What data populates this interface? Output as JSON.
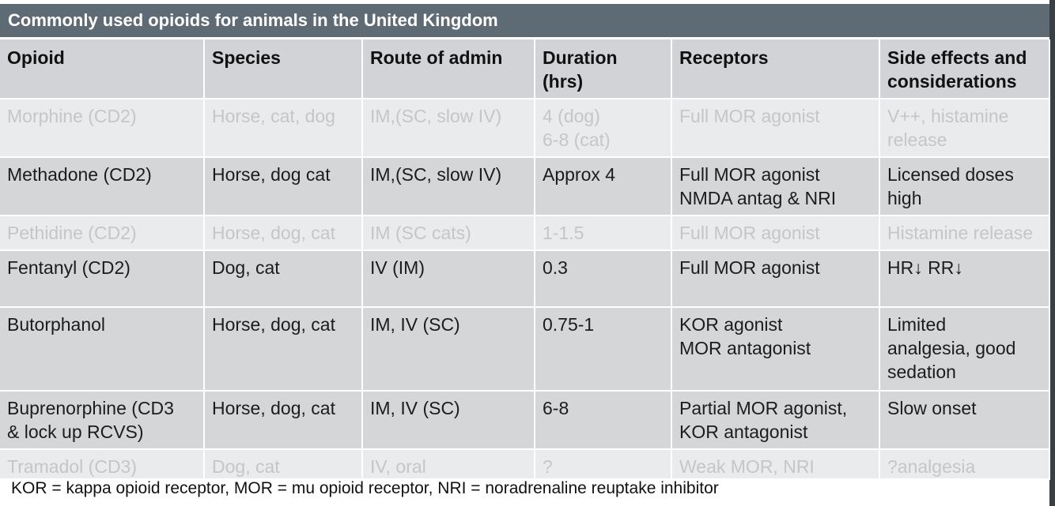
{
  "title": "Commonly used opioids for animals in the United Kingdom",
  "colors": {
    "title_bar": "#5e6b75",
    "header_row": "#d1d3d6",
    "dark_row": "#d5d6d8",
    "light_row": "#eaebec",
    "faded_text": "#c4c6c9"
  },
  "table": {
    "headers": [
      [
        "Opioid"
      ],
      [
        "Species"
      ],
      [
        "Route of admin"
      ],
      [
        "Duration",
        "(hrs)"
      ],
      [
        "Receptors"
      ],
      [
        "Side effects and",
        "considerations"
      ]
    ],
    "rows": [
      {
        "style": "light",
        "cells": [
          [
            "Morphine (CD2)"
          ],
          [
            "Horse, cat, dog"
          ],
          [
            "IM,(SC, slow IV)"
          ],
          [
            "4 (dog)",
            "6-8 (cat)"
          ],
          [
            "Full MOR agonist"
          ],
          [
            "V++, histamine",
            "release"
          ]
        ]
      },
      {
        "style": "dark",
        "cells": [
          [
            "Methadone (CD2)"
          ],
          [
            "Horse, dog cat"
          ],
          [
            "IM,(SC, slow IV)"
          ],
          [
            "Approx 4"
          ],
          [
            "Full MOR agonist",
            "NMDA antag & NRI"
          ],
          [
            "Licensed doses",
            "high"
          ]
        ]
      },
      {
        "style": "light",
        "cells": [
          [
            "Pethidine (CD2)"
          ],
          [
            "Horse, dog, cat"
          ],
          [
            "IM (SC cats)"
          ],
          [
            "1-1.5"
          ],
          [
            "Full MOR agonist"
          ],
          [
            "Histamine release"
          ]
        ]
      },
      {
        "style": "dark",
        "cells": [
          [
            "Fentanyl (CD2)"
          ],
          [
            "Dog, cat"
          ],
          [
            "IV (IM)"
          ],
          [
            "0.3"
          ],
          [
            "Full MOR agonist"
          ],
          [
            "HR↓ RR↓"
          ]
        ]
      },
      {
        "style": "dark",
        "cells": [
          [
            "Butorphanol"
          ],
          [
            "Horse, dog, cat"
          ],
          [
            "IM, IV (SC)"
          ],
          [
            "0.75-1"
          ],
          [
            "KOR agonist",
            "MOR antagonist"
          ],
          [
            "Limited",
            "analgesia, good",
            "sedation"
          ]
        ]
      },
      {
        "style": "dark",
        "cells": [
          [
            "Buprenorphine (CD3",
            "& lock up RCVS)"
          ],
          [
            "Horse, dog, cat"
          ],
          [
            "IM, IV (SC)"
          ],
          [
            "6-8"
          ],
          [
            "Partial MOR agonist,",
            "KOR antagonist"
          ],
          [
            "Slow onset"
          ]
        ]
      },
      {
        "style": "light",
        "cells": [
          [
            "Tramadol (CD3)"
          ],
          [
            "Dog, cat"
          ],
          [
            "IV, oral"
          ],
          [
            "?"
          ],
          [
            "Weak MOR, NRI"
          ],
          [
            "?analgesia"
          ]
        ]
      }
    ]
  },
  "footnote": "KOR = kappa opioid receptor, MOR = mu opioid receptor, NRI = noradrenaline reuptake inhibitor"
}
